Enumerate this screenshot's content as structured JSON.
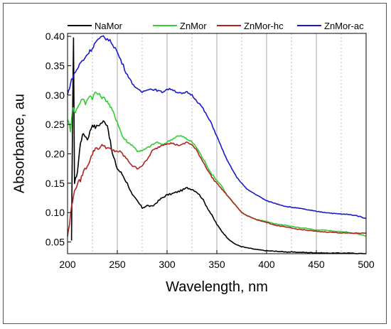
{
  "chart_data": {
    "type": "line",
    "title": "",
    "xlabel": "Wavelength, nm",
    "ylabel": "Absorbance, au",
    "xlim": [
      200,
      500
    ],
    "ylim": [
      0.03,
      0.405
    ],
    "x_ticks": [
      200,
      250,
      300,
      350,
      400,
      450,
      500
    ],
    "y_ticks": [
      0.05,
      0.1,
      0.15,
      0.2,
      0.25,
      0.3,
      0.35,
      0.4
    ],
    "y_tick_labels": [
      "0.05",
      "0.10",
      "0.15",
      "0.20",
      "0.25",
      "0.30",
      "0.35",
      "0.40"
    ],
    "vertical_gridlines_every": 25,
    "legend_position": "top",
    "series": [
      {
        "name": "NaMor",
        "color": "#000000",
        "points": [
          [
            204,
            0.05
          ],
          [
            205,
            0.25
          ],
          [
            206,
            0.4
          ],
          [
            207,
            0.15
          ],
          [
            210,
            0.17
          ],
          [
            213,
            0.22
          ],
          [
            216,
            0.235
          ],
          [
            220,
            0.225
          ],
          [
            225,
            0.25
          ],
          [
            228,
            0.245
          ],
          [
            232,
            0.25
          ],
          [
            236,
            0.255
          ],
          [
            240,
            0.25
          ],
          [
            242,
            0.23
          ],
          [
            245,
            0.2
          ],
          [
            250,
            0.175
          ],
          [
            255,
            0.165
          ],
          [
            260,
            0.15
          ],
          [
            265,
            0.13
          ],
          [
            270,
            0.12
          ],
          [
            275,
            0.108
          ],
          [
            280,
            0.112
          ],
          [
            285,
            0.11
          ],
          [
            290,
            0.118
          ],
          [
            295,
            0.125
          ],
          [
            300,
            0.13
          ],
          [
            305,
            0.132
          ],
          [
            310,
            0.135
          ],
          [
            315,
            0.138
          ],
          [
            320,
            0.142
          ],
          [
            325,
            0.14
          ],
          [
            330,
            0.135
          ],
          [
            335,
            0.125
          ],
          [
            340,
            0.11
          ],
          [
            345,
            0.095
          ],
          [
            350,
            0.08
          ],
          [
            355,
            0.068
          ],
          [
            360,
            0.058
          ],
          [
            365,
            0.05
          ],
          [
            370,
            0.045
          ],
          [
            375,
            0.042
          ],
          [
            380,
            0.04
          ],
          [
            390,
            0.037
          ],
          [
            400,
            0.035
          ],
          [
            420,
            0.033
          ],
          [
            440,
            0.032
          ],
          [
            460,
            0.031
          ],
          [
            480,
            0.031
          ],
          [
            500,
            0.03
          ]
        ]
      },
      {
        "name": "ZnMor",
        "color": "#33cc33",
        "points": [
          [
            200,
            0.26
          ],
          [
            203,
            0.24
          ],
          [
            205,
            0.28
          ],
          [
            208,
            0.27
          ],
          [
            210,
            0.28
          ],
          [
            215,
            0.295
          ],
          [
            218,
            0.285
          ],
          [
            222,
            0.3
          ],
          [
            225,
            0.295
          ],
          [
            228,
            0.305
          ],
          [
            232,
            0.3
          ],
          [
            236,
            0.295
          ],
          [
            240,
            0.29
          ],
          [
            243,
            0.28
          ],
          [
            246,
            0.27
          ],
          [
            250,
            0.255
          ],
          [
            255,
            0.23
          ],
          [
            260,
            0.22
          ],
          [
            265,
            0.215
          ],
          [
            270,
            0.205
          ],
          [
            275,
            0.205
          ],
          [
            280,
            0.21
          ],
          [
            285,
            0.215
          ],
          [
            290,
            0.22
          ],
          [
            295,
            0.215
          ],
          [
            300,
            0.22
          ],
          [
            305,
            0.225
          ],
          [
            310,
            0.23
          ],
          [
            315,
            0.23
          ],
          [
            320,
            0.225
          ],
          [
            325,
            0.22
          ],
          [
            330,
            0.21
          ],
          [
            335,
            0.195
          ],
          [
            340,
            0.18
          ],
          [
            345,
            0.165
          ],
          [
            350,
            0.155
          ],
          [
            355,
            0.145
          ],
          [
            360,
            0.13
          ],
          [
            365,
            0.12
          ],
          [
            370,
            0.11
          ],
          [
            375,
            0.1
          ],
          [
            380,
            0.095
          ],
          [
            390,
            0.088
          ],
          [
            400,
            0.085
          ],
          [
            410,
            0.08
          ],
          [
            420,
            0.078
          ],
          [
            430,
            0.075
          ],
          [
            440,
            0.073
          ],
          [
            450,
            0.07
          ],
          [
            460,
            0.07
          ],
          [
            470,
            0.068
          ],
          [
            480,
            0.067
          ],
          [
            490,
            0.064
          ],
          [
            500,
            0.06
          ]
        ]
      },
      {
        "name": "ZnMor-hc",
        "color": "#b22222",
        "points": [
          [
            200,
            0.06
          ],
          [
            202,
            0.08
          ],
          [
            204,
            0.11
          ],
          [
            206,
            0.13
          ],
          [
            208,
            0.14
          ],
          [
            210,
            0.15
          ],
          [
            213,
            0.155
          ],
          [
            216,
            0.17
          ],
          [
            220,
            0.18
          ],
          [
            225,
            0.2
          ],
          [
            228,
            0.21
          ],
          [
            232,
            0.21
          ],
          [
            236,
            0.215
          ],
          [
            240,
            0.21
          ],
          [
            245,
            0.205
          ],
          [
            250,
            0.205
          ],
          [
            255,
            0.2
          ],
          [
            260,
            0.19
          ],
          [
            265,
            0.18
          ],
          [
            270,
            0.175
          ],
          [
            275,
            0.18
          ],
          [
            280,
            0.19
          ],
          [
            285,
            0.205
          ],
          [
            290,
            0.21
          ],
          [
            295,
            0.215
          ],
          [
            300,
            0.218
          ],
          [
            305,
            0.218
          ],
          [
            310,
            0.215
          ],
          [
            315,
            0.215
          ],
          [
            320,
            0.22
          ],
          [
            325,
            0.215
          ],
          [
            330,
            0.205
          ],
          [
            335,
            0.19
          ],
          [
            340,
            0.175
          ],
          [
            345,
            0.16
          ],
          [
            350,
            0.15
          ],
          [
            355,
            0.14
          ],
          [
            360,
            0.13
          ],
          [
            365,
            0.12
          ],
          [
            370,
            0.11
          ],
          [
            375,
            0.1
          ],
          [
            380,
            0.095
          ],
          [
            390,
            0.088
          ],
          [
            400,
            0.083
          ],
          [
            410,
            0.078
          ],
          [
            420,
            0.075
          ],
          [
            430,
            0.072
          ],
          [
            440,
            0.07
          ],
          [
            450,
            0.068
          ],
          [
            460,
            0.067
          ],
          [
            470,
            0.066
          ],
          [
            480,
            0.065
          ],
          [
            490,
            0.065
          ],
          [
            500,
            0.065
          ]
        ]
      },
      {
        "name": "ZnMor-ac",
        "color": "#1a1acc",
        "points": [
          [
            200,
            0.3
          ],
          [
            203,
            0.32
          ],
          [
            205,
            0.33
          ],
          [
            208,
            0.34
          ],
          [
            210,
            0.345
          ],
          [
            213,
            0.355
          ],
          [
            216,
            0.36
          ],
          [
            220,
            0.37
          ],
          [
            225,
            0.38
          ],
          [
            228,
            0.39
          ],
          [
            232,
            0.395
          ],
          [
            236,
            0.4
          ],
          [
            240,
            0.395
          ],
          [
            244,
            0.39
          ],
          [
            248,
            0.38
          ],
          [
            252,
            0.365
          ],
          [
            256,
            0.35
          ],
          [
            260,
            0.335
          ],
          [
            265,
            0.32
          ],
          [
            270,
            0.31
          ],
          [
            275,
            0.305
          ],
          [
            280,
            0.31
          ],
          [
            285,
            0.31
          ],
          [
            290,
            0.308
          ],
          [
            295,
            0.305
          ],
          [
            300,
            0.31
          ],
          [
            305,
            0.31
          ],
          [
            310,
            0.305
          ],
          [
            315,
            0.302
          ],
          [
            320,
            0.305
          ],
          [
            325,
            0.3
          ],
          [
            330,
            0.29
          ],
          [
            335,
            0.28
          ],
          [
            340,
            0.265
          ],
          [
            345,
            0.25
          ],
          [
            350,
            0.23
          ],
          [
            355,
            0.21
          ],
          [
            360,
            0.19
          ],
          [
            365,
            0.175
          ],
          [
            370,
            0.16
          ],
          [
            375,
            0.15
          ],
          [
            380,
            0.14
          ],
          [
            390,
            0.13
          ],
          [
            400,
            0.12
          ],
          [
            410,
            0.115
          ],
          [
            420,
            0.11
          ],
          [
            430,
            0.108
          ],
          [
            440,
            0.105
          ],
          [
            450,
            0.102
          ],
          [
            460,
            0.1
          ],
          [
            470,
            0.098
          ],
          [
            480,
            0.097
          ],
          [
            490,
            0.095
          ],
          [
            500,
            0.09
          ]
        ]
      }
    ]
  }
}
